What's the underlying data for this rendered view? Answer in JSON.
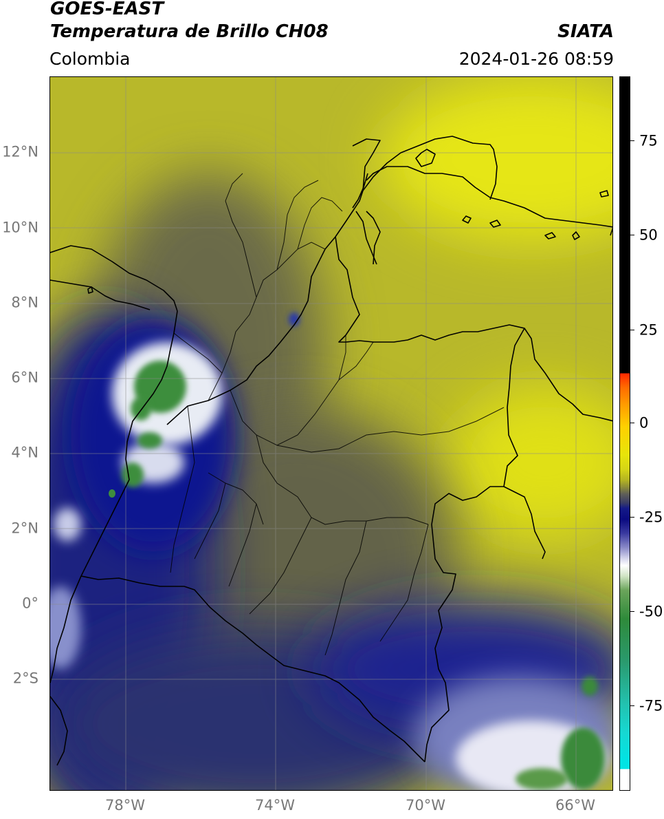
{
  "header": {
    "satellite": "GOES-EAST",
    "product": "Temperatura de Brillo CH08",
    "brand": "SIATA",
    "region": "Colombia",
    "datetime": "2024-01-26 08:59"
  },
  "map": {
    "lat_ticks": [
      {
        "value": 12,
        "label": "12°N"
      },
      {
        "value": 10,
        "label": "10°N"
      },
      {
        "value": 8,
        "label": "8°N"
      },
      {
        "value": 6,
        "label": "6°N"
      },
      {
        "value": 4,
        "label": "4°N"
      },
      {
        "value": 2,
        "label": "2°N"
      },
      {
        "value": 0,
        "label": "0°"
      },
      {
        "value": -2,
        "label": "2°S"
      }
    ],
    "lon_ticks": [
      {
        "value": -78,
        "label": "78°W"
      },
      {
        "value": -74,
        "label": "74°W"
      },
      {
        "value": -70,
        "label": "70°W"
      },
      {
        "value": -66,
        "label": "66°W"
      }
    ],
    "lat_range": [
      -5,
      14
    ],
    "lon_range": [
      -80,
      -65
    ],
    "grid": true
  },
  "colorbar": {
    "ticks": [
      {
        "value": 75,
        "label": "75"
      },
      {
        "value": 50,
        "label": "50"
      },
      {
        "value": 25,
        "label": "25"
      },
      {
        "value": 0,
        "label": "0"
      },
      {
        "value": -25,
        "label": "-25"
      },
      {
        "value": -50,
        "label": "-50"
      },
      {
        "value": -75,
        "label": "-75"
      }
    ],
    "range": [
      -100,
      90
    ]
  }
}
